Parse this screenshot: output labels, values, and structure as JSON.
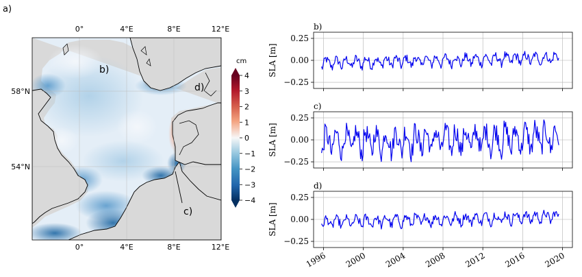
{
  "figure_label": "a)",
  "map": {
    "lon_ticks": [
      "0°",
      "4°E",
      "8°E",
      "12°E"
    ],
    "lat_ticks": [
      "58°N",
      "54°N"
    ],
    "point_labels": [
      "b)",
      "c)",
      "d)"
    ],
    "colorbar": {
      "unit": "cm",
      "ticks": [
        "4",
        "3",
        "2",
        "1",
        "0",
        "−1",
        "−2",
        "−3",
        "−4"
      ],
      "range": [
        -4,
        4
      ],
      "colormap": "RdBu_r"
    },
    "colors": {
      "land": "#d9d9d9",
      "sea_light": "#e3eef7",
      "sea_mid": "#9cc5e1",
      "sea_dark": "#2a6fa8",
      "coast": "#000000"
    }
  },
  "chart_data": [
    {
      "type": "line",
      "panel_label": "b)",
      "ylabel": "SLA [m]",
      "ylim": [
        -0.32,
        0.32
      ],
      "yticks": [
        "0.25",
        "0.00",
        "−0.25"
      ],
      "ytick_values": [
        0.25,
        0.0,
        -0.25
      ],
      "xlim": [
        1995,
        2021
      ],
      "xtick_values": [
        1996,
        2000,
        2004,
        2008,
        2012,
        2016,
        2020
      ],
      "grid": true,
      "color": "#0000ee",
      "amplitude": 0.1,
      "drift": 0.06,
      "x_start": 1995.8,
      "x_end": 2019.6
    },
    {
      "type": "line",
      "panel_label": "c)",
      "ylabel": "SLA [m]",
      "ylim": [
        -0.32,
        0.32
      ],
      "yticks": [
        "0.25",
        "0.00",
        "−0.25"
      ],
      "ytick_values": [
        0.25,
        0.0,
        -0.25
      ],
      "xlim": [
        1995,
        2021
      ],
      "xtick_values": [
        1996,
        2000,
        2004,
        2008,
        2012,
        2016,
        2020
      ],
      "grid": true,
      "color": "#0000ee",
      "amplitude": 0.25,
      "drift": 0.05,
      "x_start": 1995.8,
      "x_end": 2019.6
    },
    {
      "type": "line",
      "panel_label": "d)",
      "ylabel": "SLA [m]",
      "ylim": [
        -0.32,
        0.32
      ],
      "yticks": [
        "0.25",
        "0.00",
        "−0.25"
      ],
      "ytick_values": [
        0.25,
        0.0,
        -0.25
      ],
      "xlim": [
        1995,
        2021
      ],
      "xtick_values": [
        1996,
        2000,
        2004,
        2008,
        2012,
        2016,
        2020
      ],
      "xticks": [
        "1996",
        "2000",
        "2004",
        "2008",
        "2012",
        "2016",
        "2020"
      ],
      "grid": true,
      "color": "#0000ee",
      "amplitude": 0.1,
      "drift": 0.07,
      "x_start": 1995.8,
      "x_end": 2019.6
    }
  ]
}
